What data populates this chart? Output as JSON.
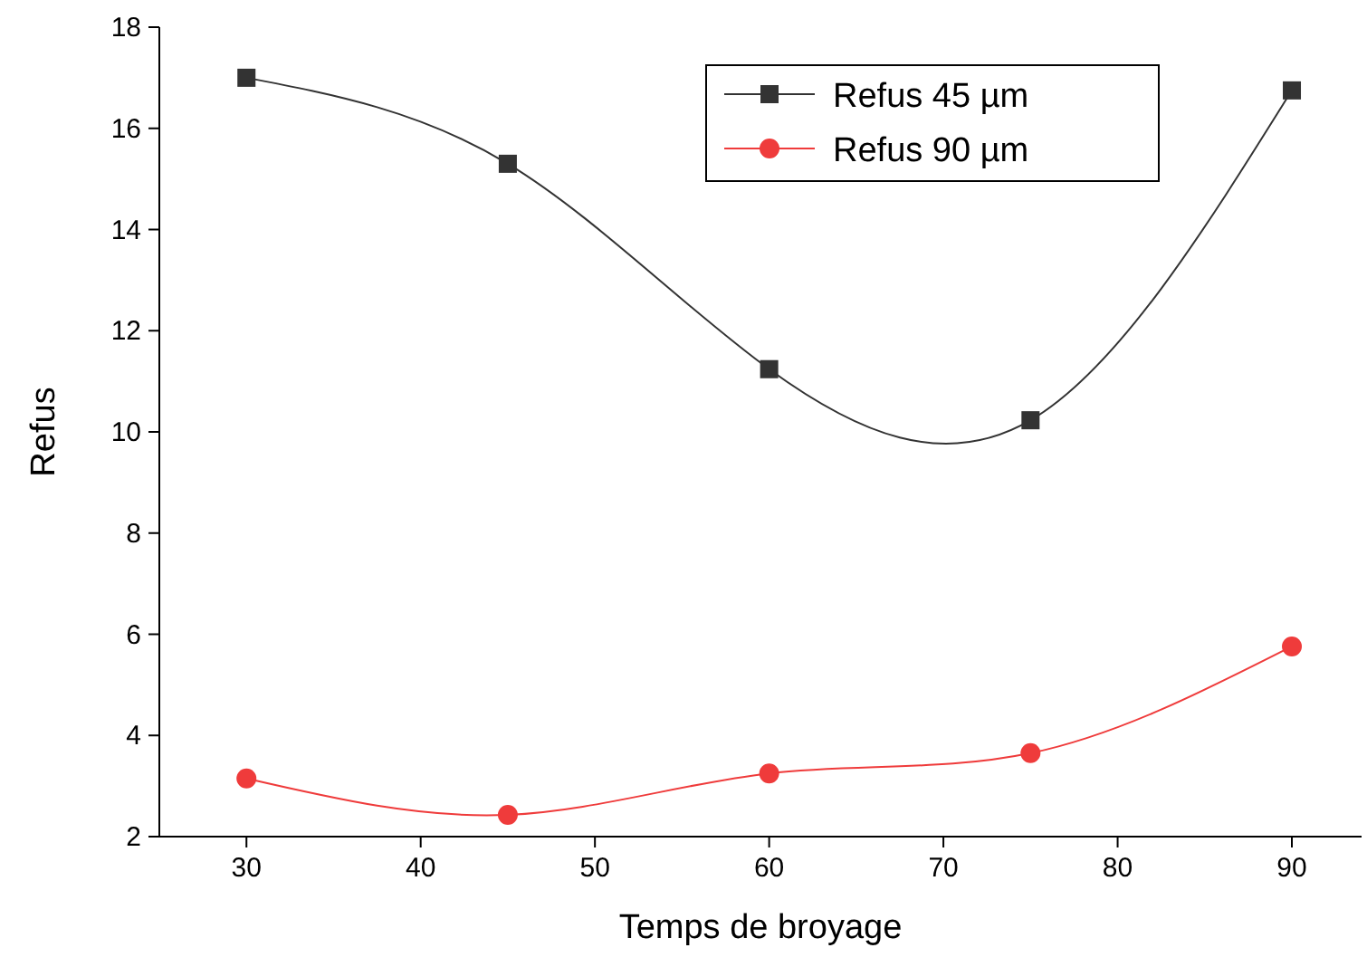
{
  "chart_data": {
    "type": "line",
    "xlabel": "Temps de broyage",
    "ylabel": "Refus",
    "x": [
      30,
      45,
      60,
      75,
      90
    ],
    "series": [
      {
        "name": "Refus 45 µm",
        "color": "#333333",
        "marker": "square",
        "values": [
          17.0,
          15.3,
          11.24,
          10.23,
          16.75
        ]
      },
      {
        "name": "Refus 90 µm",
        "color": "#ef3b3b",
        "marker": "circle",
        "values": [
          3.15,
          2.43,
          3.25,
          3.65,
          5.76
        ]
      }
    ],
    "xlim": [
      25,
      94
    ],
    "ylim": [
      2,
      18
    ],
    "xticks": [
      30,
      40,
      50,
      60,
      70,
      80,
      90
    ],
    "yticks": [
      2,
      4,
      6,
      8,
      10,
      12,
      14,
      16,
      18
    ],
    "legend": "top right",
    "grid": false
  }
}
